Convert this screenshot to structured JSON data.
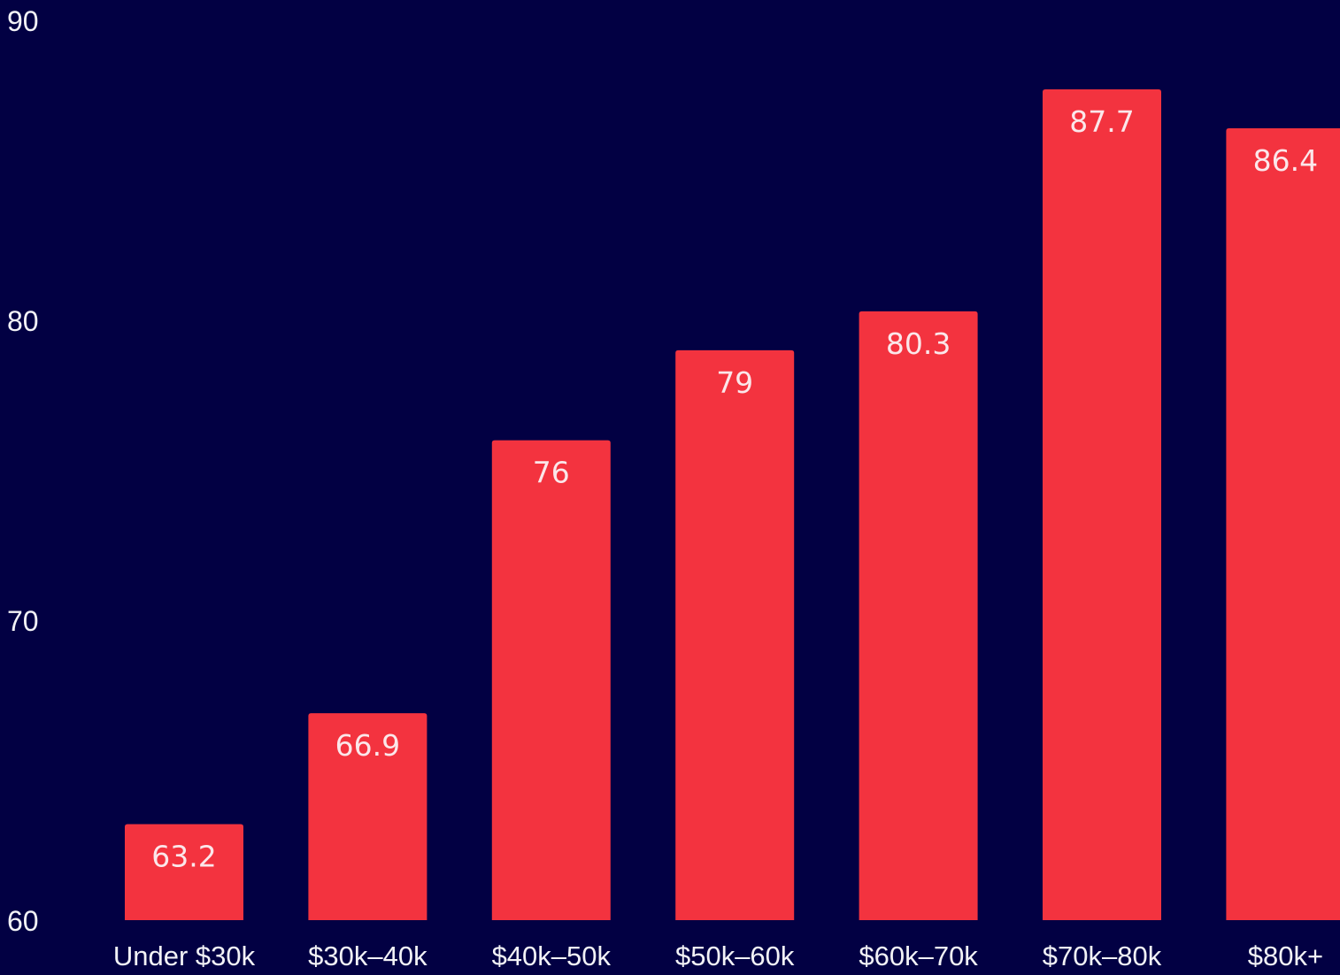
{
  "colors": {
    "background": "#020043",
    "bar": "#f3333f",
    "text": "#f2f2f6"
  },
  "chart_data": {
    "type": "bar",
    "title": "",
    "xlabel": "",
    "ylabel": "",
    "categories": [
      "Under $30k",
      "$30k–40k",
      "$40k–50k",
      "$50k–60k",
      "$60k–70k",
      "$70k–80k",
      "$80k+"
    ],
    "values": [
      63.2,
      66.9,
      76,
      79,
      80.3,
      87.7,
      86.4
    ],
    "data_labels": [
      "63.2",
      "66.9",
      "76",
      "79",
      "80.3",
      "87.7",
      "86.4"
    ],
    "ylim": [
      60,
      90
    ],
    "yticks": [
      60,
      70,
      80,
      90
    ],
    "ytick_labels": [
      "60",
      "70",
      "80",
      "90"
    ],
    "grid": false,
    "legend": "none"
  }
}
